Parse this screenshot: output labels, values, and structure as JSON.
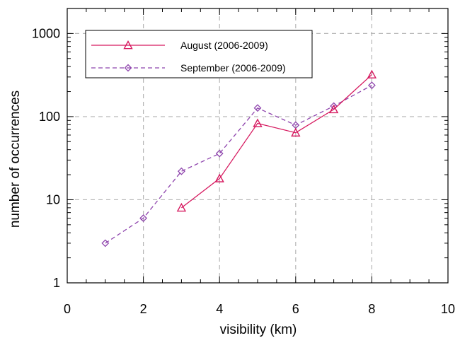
{
  "chart_data": {
    "type": "line",
    "xlabel": "visibility (km)",
    "ylabel": "number of occurrences",
    "xlim": [
      0,
      10
    ],
    "ylim": [
      1,
      2000
    ],
    "yscale": "log",
    "x_ticks": [
      "0",
      "2",
      "4",
      "6",
      "8",
      "10"
    ],
    "y_ticks": [
      "1",
      "10",
      "100",
      "1000"
    ],
    "grid": true,
    "legend_position": "top-left",
    "series": [
      {
        "name": "August (2006-2009)",
        "color": "#d6195f",
        "line_style": "solid",
        "marker": "triangle",
        "x": [
          3,
          4,
          5,
          6,
          7,
          8
        ],
        "y": [
          8,
          18,
          83,
          64,
          122,
          320
        ]
      },
      {
        "name": "September (2006-2009)",
        "color": "#8e44ad",
        "line_style": "dashed",
        "marker": "diamond",
        "x": [
          1,
          2,
          3,
          4,
          5,
          6,
          7,
          8
        ],
        "y": [
          3,
          6,
          22,
          36,
          127,
          79,
          134,
          238
        ]
      }
    ]
  }
}
